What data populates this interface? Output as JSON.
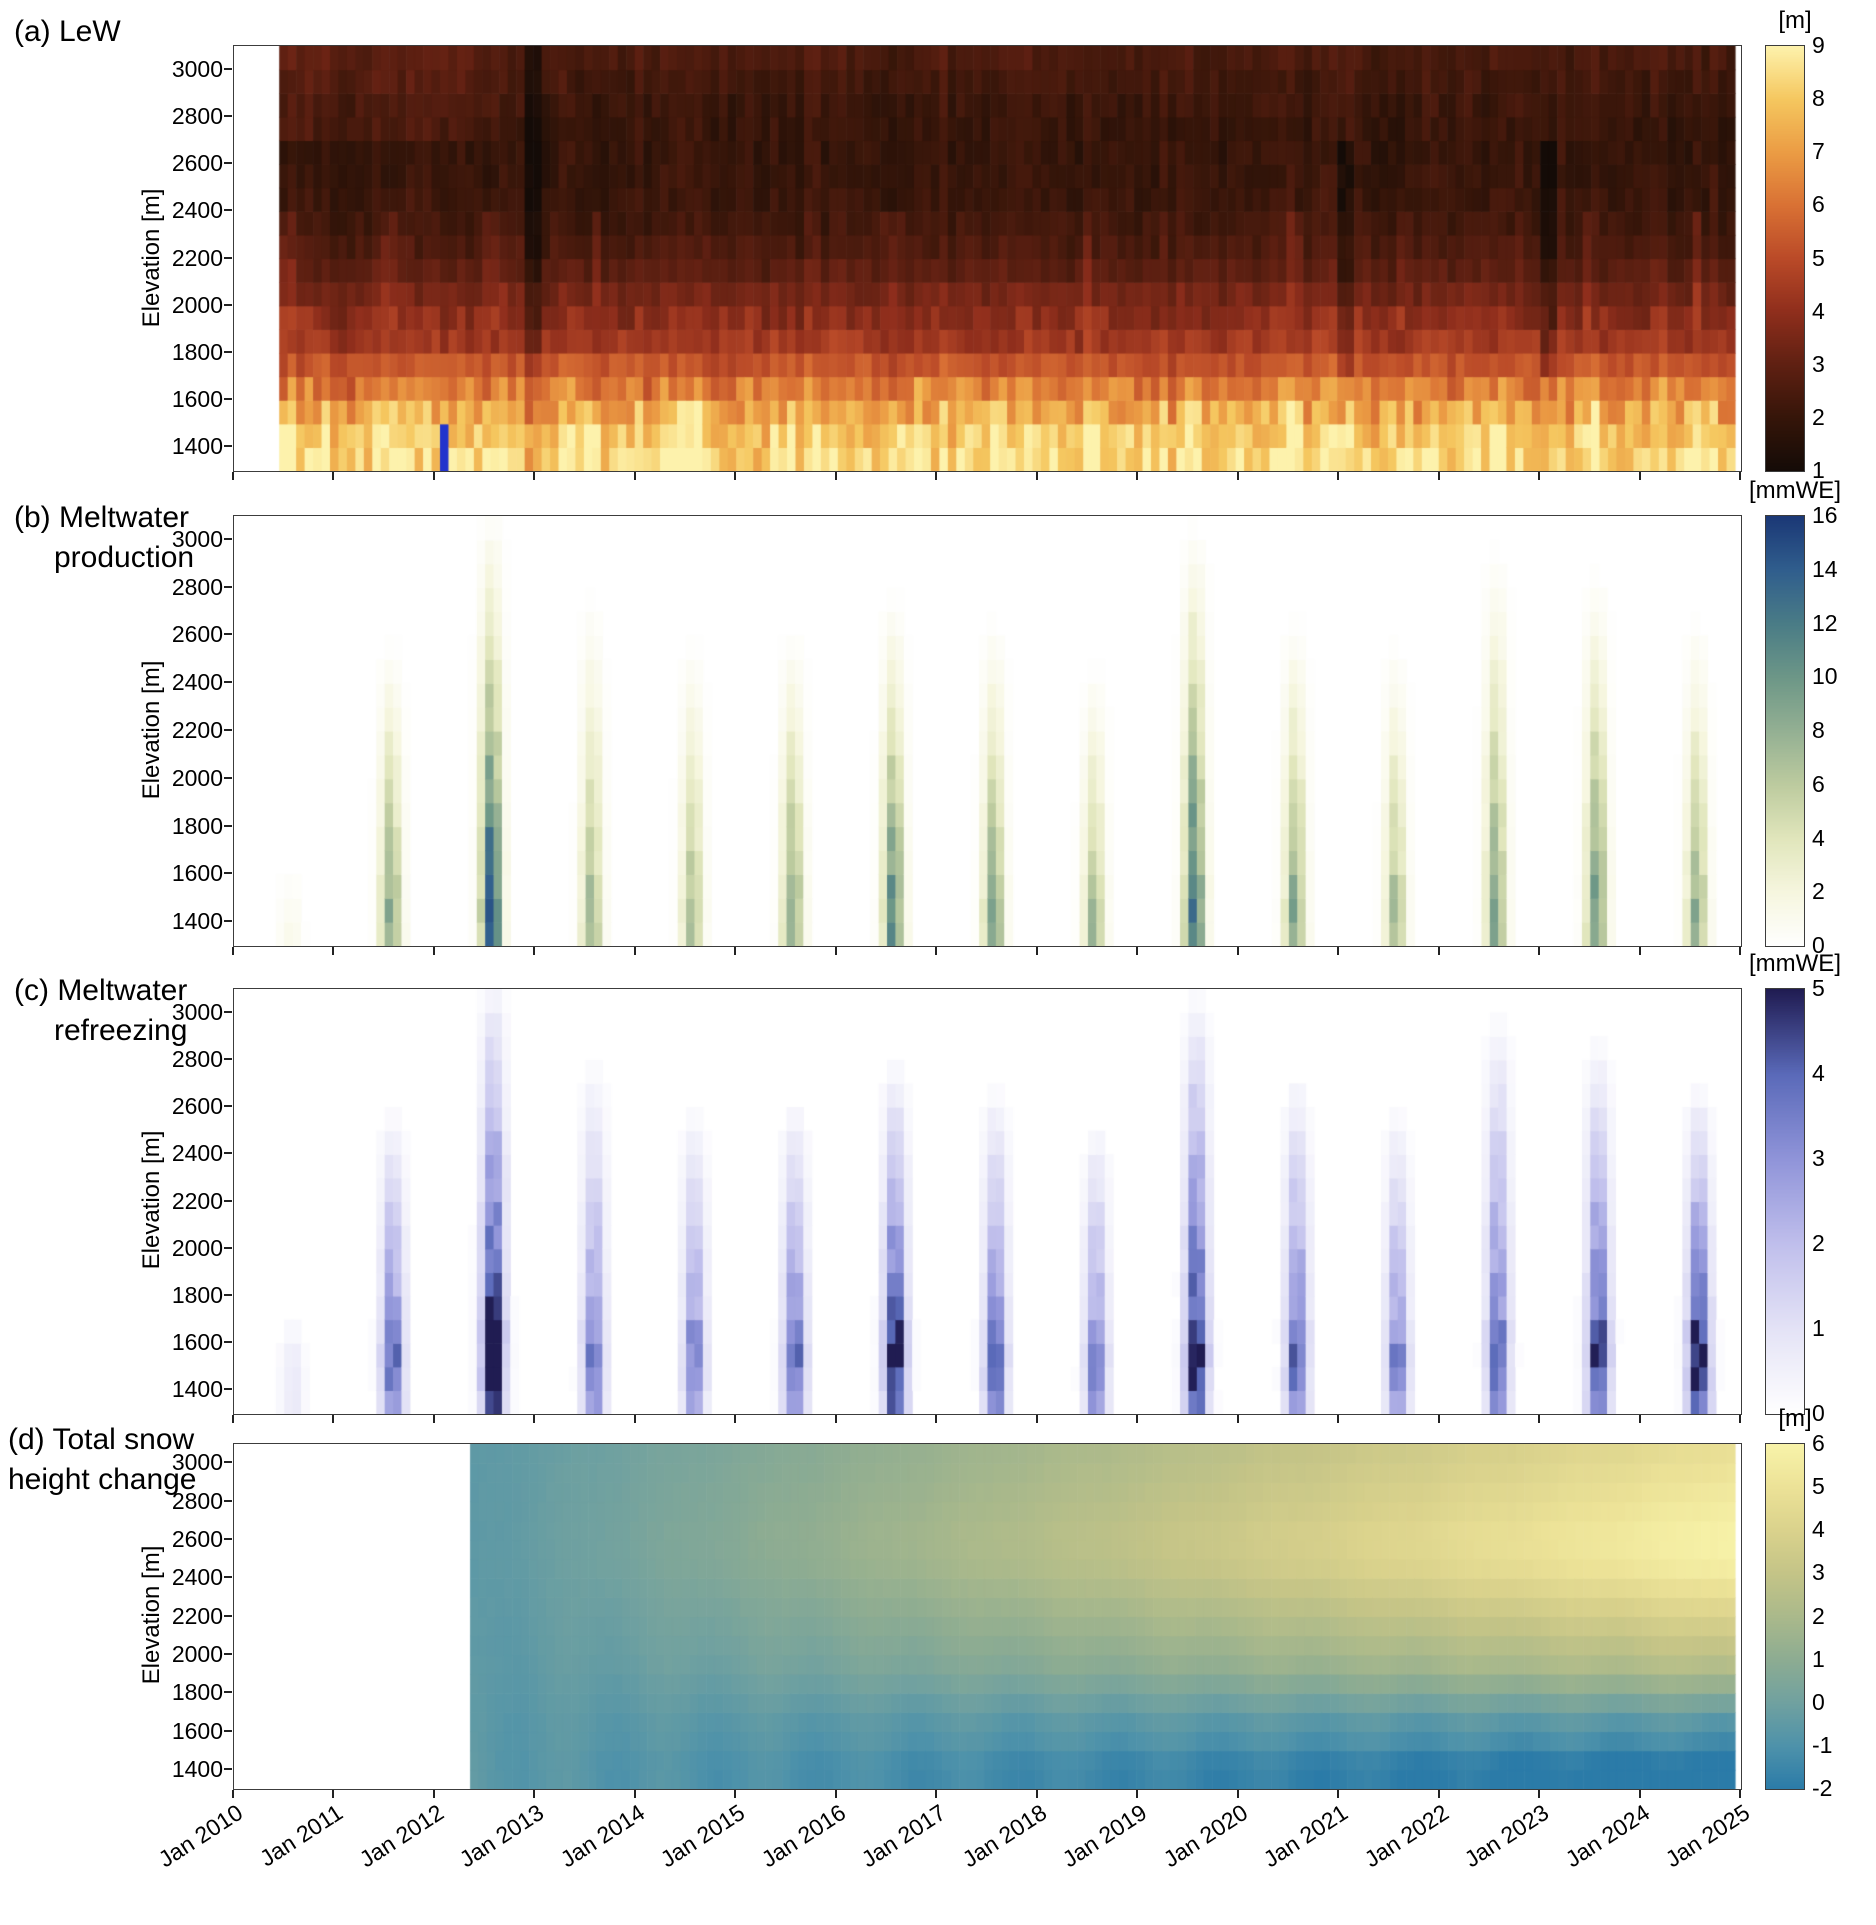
{
  "figure": {
    "background": "#ffffff",
    "x_axis": {
      "range_years": [
        2010,
        2025
      ],
      "tick_labels": [
        "Jan 2010",
        "Jan 2011",
        "Jan 2012",
        "Jan 2013",
        "Jan 2014",
        "Jan 2015",
        "Jan 2016",
        "Jan 2017",
        "Jan 2018",
        "Jan 2019",
        "Jan 2020",
        "Jan 2021",
        "Jan 2022",
        "Jan 2023",
        "Jan 2024",
        "Jan 2025"
      ]
    },
    "y_axis": {
      "label": "Elevation [m]",
      "tick_labels": [
        "1400",
        "1600",
        "1800",
        "2000",
        "2200",
        "2400",
        "2600",
        "2800",
        "3000"
      ],
      "range_m": [
        1300,
        3100
      ],
      "band_height_m": 100
    }
  },
  "chart_data": [
    {
      "type": "heatmap",
      "panel": "a",
      "title_lines": [
        "(a) LeW"
      ],
      "unit": "[m]",
      "x_range_years": [
        2010,
        2025
      ],
      "y_range_m": [
        1300,
        3100
      ],
      "x_years": {
        "data_start": 2010.45,
        "data_end": 2024.94
      },
      "elevation_bands_m": [
        1300,
        1400,
        1500,
        1600,
        1700,
        1800,
        1900,
        2000,
        2100,
        2200,
        2300,
        2400,
        2500,
        2600,
        2700,
        2800,
        2900,
        3000
      ],
      "elevation_profile_m": [
        8.3,
        8.0,
        7.2,
        6.4,
        5.3,
        4.4,
        3.9,
        3.4,
        2.9,
        2.55,
        2.3,
        2.15,
        2.05,
        2.0,
        2.05,
        2.15,
        2.3,
        2.5
      ],
      "summer_peak_frac": 0.55,
      "summer_boost_low_m": 0.9,
      "noise_m": 0.8,
      "anomalies": [
        {
          "t0": 2012.02,
          "t1": 2012.11,
          "bands": "bottom2",
          "special_color": "#2233cc",
          "note": "blue outlier column at lowest elevations"
        },
        {
          "t0": 2012.9,
          "t1": 2013.06,
          "bands": "all",
          "offset_m": -1.2,
          "note": "dark column near Jan 2013"
        },
        {
          "t0": 2021.02,
          "t1": 2021.14,
          "bands": "mid",
          "offset_m": -0.9
        },
        {
          "t0": 2023.02,
          "t1": 2023.14,
          "bands": "mid",
          "offset_m": -0.9
        }
      ],
      "colorbar": {
        "min": 1,
        "max": 9,
        "tick_labels": [
          "1",
          "2",
          "3",
          "4",
          "5",
          "6",
          "7",
          "8",
          "9"
        ],
        "stops": [
          [
            1,
            "#140b07"
          ],
          [
            2,
            "#351509"
          ],
          [
            3,
            "#5f2012"
          ],
          [
            4,
            "#8f2e1c"
          ],
          [
            5,
            "#ba4a28"
          ],
          [
            6,
            "#d97134"
          ],
          [
            7,
            "#eb9c44"
          ],
          [
            8,
            "#f5c75f"
          ],
          [
            9,
            "#fdf2ac"
          ]
        ]
      }
    },
    {
      "type": "heatmap",
      "panel": "b",
      "title_lines": [
        "(b) Meltwater",
        "production"
      ],
      "unit": "[mmWE]",
      "x_range_years": [
        2010,
        2025
      ],
      "y_range_m": [
        1300,
        3100
      ],
      "elevation_bands_m": [
        1300,
        1400,
        1500,
        1600,
        1700,
        1800,
        1900,
        2000,
        2100,
        2200,
        2300,
        2400,
        2500,
        2600,
        2700,
        2800,
        2900,
        3000
      ],
      "season": {
        "center_frac": 0.56,
        "width_frac": 0.1
      },
      "yearly_melt": [
        {
          "year": 2010,
          "peak_mmwe": 1.5,
          "top_elevation_m": 1600
        },
        {
          "year": 2011,
          "peak_mmwe": 10,
          "top_elevation_m": 2550
        },
        {
          "year": 2012,
          "peak_mmwe": 16,
          "top_elevation_m": 3100
        },
        {
          "year": 2013,
          "peak_mmwe": 8,
          "top_elevation_m": 2750
        },
        {
          "year": 2014,
          "peak_mmwe": 8,
          "top_elevation_m": 2550
        },
        {
          "year": 2015,
          "peak_mmwe": 10,
          "top_elevation_m": 2600
        },
        {
          "year": 2016,
          "peak_mmwe": 12,
          "top_elevation_m": 2750
        },
        {
          "year": 2017,
          "peak_mmwe": 10,
          "top_elevation_m": 2650
        },
        {
          "year": 2018,
          "peak_mmwe": 8,
          "top_elevation_m": 2450
        },
        {
          "year": 2019,
          "peak_mmwe": 14,
          "top_elevation_m": 3050
        },
        {
          "year": 2020,
          "peak_mmwe": 10,
          "top_elevation_m": 2650
        },
        {
          "year": 2021,
          "peak_mmwe": 8,
          "top_elevation_m": 2550
        },
        {
          "year": 2022,
          "peak_mmwe": 10,
          "top_elevation_m": 2950
        },
        {
          "year": 2023,
          "peak_mmwe": 11,
          "top_elevation_m": 2850
        },
        {
          "year": 2024,
          "peak_mmwe": 9,
          "top_elevation_m": 2650
        }
      ],
      "colorbar": {
        "min": 0,
        "max": 16,
        "tick_labels": [
          "0",
          "2",
          "4",
          "6",
          "8",
          "10",
          "12",
          "14",
          "16"
        ],
        "stops": [
          [
            0,
            "#ffffff"
          ],
          [
            2,
            "#f6f6df"
          ],
          [
            4,
            "#e1e6bc"
          ],
          [
            6,
            "#bdcb9f"
          ],
          [
            8,
            "#94b093"
          ],
          [
            10,
            "#6d9787"
          ],
          [
            12,
            "#4a7c86"
          ],
          [
            14,
            "#305e8d"
          ],
          [
            16,
            "#1b3876"
          ]
        ]
      }
    },
    {
      "type": "heatmap",
      "panel": "c",
      "title_lines": [
        "(c) Meltwater",
        "refreezing"
      ],
      "unit": "[mmWE]",
      "x_range_years": [
        2010,
        2025
      ],
      "y_range_m": [
        1300,
        3100
      ],
      "elevation_bands_m": [
        1300,
        1400,
        1500,
        1600,
        1700,
        1800,
        1900,
        2000,
        2100,
        2200,
        2300,
        2400,
        2500,
        2600,
        2700,
        2800,
        2900,
        3000
      ],
      "season": {
        "center_frac": 0.58,
        "width_frac": 0.11
      },
      "yearly_refreeze": [
        {
          "year": 2010,
          "peak_mmwe": 0.8,
          "top_elevation_m": 1700
        },
        {
          "year": 2011,
          "peak_mmwe": 3.5,
          "top_elevation_m": 2550
        },
        {
          "year": 2012,
          "peak_mmwe": 5,
          "top_elevation_m": 3100
        },
        {
          "year": 2013,
          "peak_mmwe": 3,
          "top_elevation_m": 2750
        },
        {
          "year": 2014,
          "peak_mmwe": 3,
          "top_elevation_m": 2550
        },
        {
          "year": 2015,
          "peak_mmwe": 3.5,
          "top_elevation_m": 2600
        },
        {
          "year": 2016,
          "peak_mmwe": 4.5,
          "top_elevation_m": 2750
        },
        {
          "year": 2017,
          "peak_mmwe": 3.5,
          "top_elevation_m": 2650
        },
        {
          "year": 2018,
          "peak_mmwe": 3,
          "top_elevation_m": 2500
        },
        {
          "year": 2019,
          "peak_mmwe": 4.5,
          "top_elevation_m": 3050
        },
        {
          "year": 2020,
          "peak_mmwe": 3.5,
          "top_elevation_m": 2700
        },
        {
          "year": 2021,
          "peak_mmwe": 3,
          "top_elevation_m": 2550
        },
        {
          "year": 2022,
          "peak_mmwe": 3.5,
          "top_elevation_m": 2950
        },
        {
          "year": 2023,
          "peak_mmwe": 4,
          "top_elevation_m": 2850
        },
        {
          "year": 2024,
          "peak_mmwe": 4.5,
          "top_elevation_m": 2650
        }
      ],
      "colorbar": {
        "min": 0,
        "max": 5,
        "tick_labels": [
          "0",
          "1",
          "2",
          "3",
          "4",
          "5"
        ],
        "stops": [
          [
            0,
            "#ffffff"
          ],
          [
            1,
            "#e4e3f6"
          ],
          [
            2,
            "#c0bfec"
          ],
          [
            3,
            "#9094d9"
          ],
          [
            4,
            "#5a6ab9"
          ],
          [
            5,
            "#201c52"
          ]
        ]
      }
    },
    {
      "type": "heatmap",
      "panel": "d",
      "title_lines": [
        "(d) Total snow",
        "height change"
      ],
      "unit": "[m]",
      "x_range_years": [
        2010,
        2025
      ],
      "y_range_m": [
        1300,
        3100
      ],
      "x_years": {
        "data_start": 2012.35,
        "data_end": 2024.94
      },
      "elevation_bands_m": [
        1300,
        1400,
        1500,
        1600,
        1700,
        1800,
        1900,
        2000,
        2100,
        2200,
        2300,
        2400,
        2500,
        2600,
        2700,
        2800,
        2900,
        3000
      ],
      "initial_value_m": -0.6,
      "trend_m_per_year_by_band": [
        -0.14,
        -0.12,
        -0.05,
        0.0,
        0.08,
        0.17,
        0.25,
        0.3,
        0.35,
        0.4,
        0.45,
        0.5,
        0.52,
        0.52,
        0.5,
        0.48,
        0.46,
        0.44
      ],
      "seasonal_amplitude_m": 0.22,
      "colorbar": {
        "min": -2,
        "max": 6,
        "tick_labels": [
          "-2",
          "-1",
          "0",
          "1",
          "2",
          "3",
          "4",
          "5",
          "6"
        ],
        "stops": [
          [
            -2,
            "#2b7ba8"
          ],
          [
            -1,
            "#4e92aa"
          ],
          [
            0,
            "#70a1a0"
          ],
          [
            1,
            "#8dac92"
          ],
          [
            2,
            "#aab98b"
          ],
          [
            3,
            "#c4c487"
          ],
          [
            4,
            "#dad28c"
          ],
          [
            5,
            "#ece297"
          ],
          [
            6,
            "#f8f3a9"
          ]
        ]
      }
    }
  ]
}
